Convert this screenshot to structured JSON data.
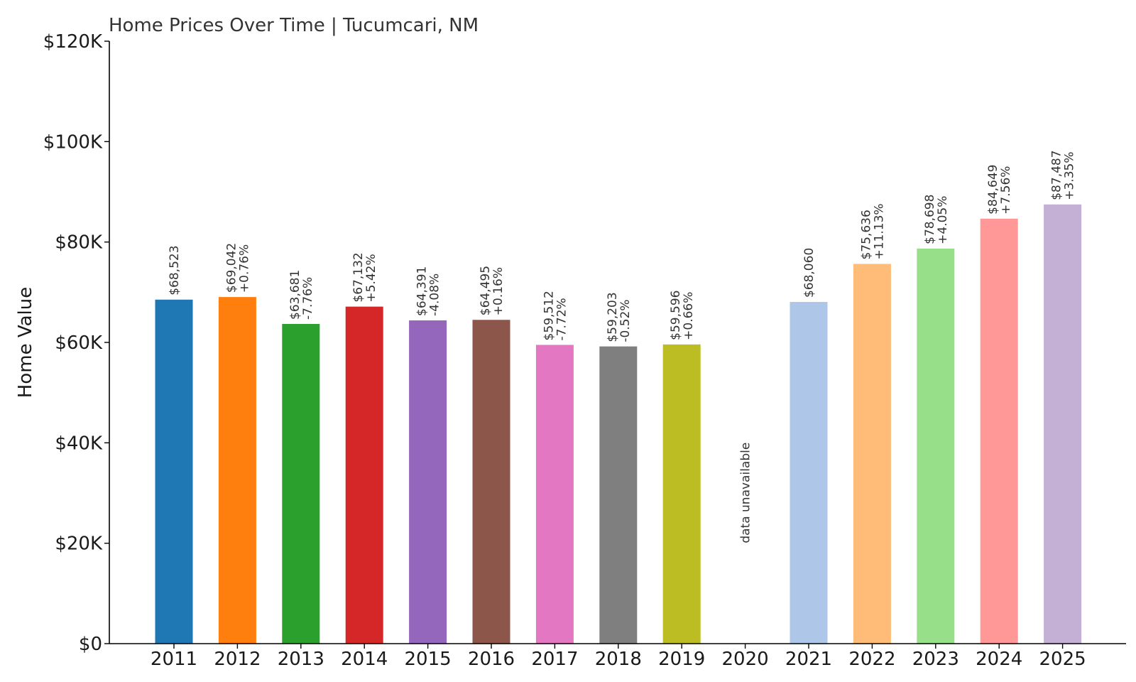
{
  "chart_data": {
    "type": "bar",
    "title": "Home Prices Over Time | Tucumcari, NM",
    "xlabel": "",
    "ylabel": "Home Value",
    "ylim": [
      0,
      120000
    ],
    "yticks": [
      {
        "value": 0,
        "label": "$0"
      },
      {
        "value": 20000,
        "label": "$20K"
      },
      {
        "value": 40000,
        "label": "$40K"
      },
      {
        "value": 60000,
        "label": "$60K"
      },
      {
        "value": 80000,
        "label": "$80K"
      },
      {
        "value": 100000,
        "label": "$100K"
      },
      {
        "value": 120000,
        "label": "$120K"
      }
    ],
    "grid": false,
    "categories": [
      "2011",
      "2012",
      "2013",
      "2014",
      "2015",
      "2016",
      "2017",
      "2018",
      "2019",
      "2020",
      "2021",
      "2022",
      "2023",
      "2024",
      "2025"
    ],
    "values": [
      68523,
      69042,
      63681,
      67132,
      64391,
      64495,
      59512,
      59203,
      59596,
      null,
      68060,
      75636,
      78698,
      84649,
      87487
    ],
    "value_labels": [
      "$68,523",
      "$69,042",
      "$63,681",
      "$67,132",
      "$64,391",
      "$64,495",
      "$59,512",
      "$59,203",
      "$59,596",
      "",
      "$68,060",
      "$75,636",
      "$78,698",
      "$84,649",
      "$87,487"
    ],
    "change_labels": [
      "",
      "+0.76%",
      "-7.76%",
      "+5.42%",
      "-4.08%",
      "+0.16%",
      "-7.72%",
      "-0.52%",
      "+0.66%",
      "",
      "",
      "+11.13%",
      "+4.05%",
      "+7.56%",
      "+3.35%"
    ],
    "missing_label": "data unavailable",
    "colors": [
      "#1f77b4",
      "#ff7f0e",
      "#2ca02c",
      "#d62728",
      "#9467bd",
      "#8c564b",
      "#e377c2",
      "#7f7f7f",
      "#bcbd22",
      "#17becf",
      "#aec7e8",
      "#ffbb78",
      "#98df8a",
      "#ff9896",
      "#c5b0d5"
    ]
  }
}
